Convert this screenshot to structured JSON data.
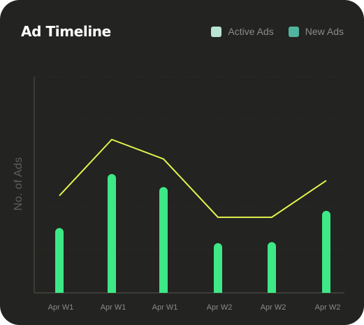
{
  "card": {
    "title": "Ad Timeline"
  },
  "legend": [
    {
      "label": "Active Ads",
      "color": "#b9e4d5"
    },
    {
      "label": "New Ads",
      "color": "#50b59c"
    }
  ],
  "colors": {
    "background": "#232321",
    "bar": "#3ee886",
    "line": "#e4f44e",
    "axis": "#45453f"
  },
  "chart_data": {
    "type": "bar",
    "title": "Ad Timeline",
    "xlabel": "",
    "ylabel": "No. of Ads",
    "categories": [
      "Apr W1",
      "Apr W1",
      "Apr W1",
      "Apr W2",
      "Apr W2",
      "Apr W2"
    ],
    "series": [
      {
        "name": "Active Ads",
        "type": "line",
        "values": [
          45,
          71,
          62,
          35,
          35,
          52
        ]
      },
      {
        "name": "New Ads",
        "type": "bar",
        "values": [
          30,
          55,
          49,
          23,
          23.5,
          38
        ]
      }
    ],
    "ylim": [
      0,
      100
    ],
    "grid": true,
    "legend_position": "top-right"
  }
}
